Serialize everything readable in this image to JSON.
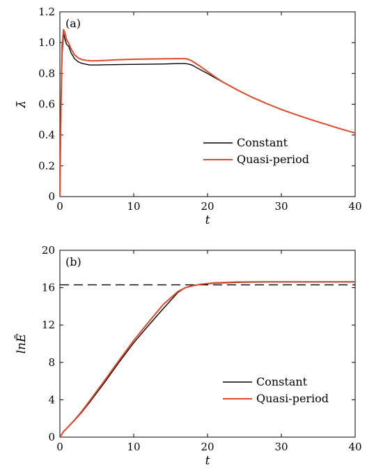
{
  "chart_data": [
    {
      "panel": "(a)",
      "type": "line",
      "xlabel": "t",
      "ylabel": "λ̄",
      "xlim": [
        0,
        40
      ],
      "ylim": [
        0,
        1.2
      ],
      "xticks": [
        "0",
        "10",
        "20",
        "30",
        "40"
      ],
      "yticks": [
        "0",
        "0.2",
        "0.4",
        "0.6",
        "0.8",
        "1.0",
        "1.2"
      ],
      "legend_position": "lower-right",
      "series": [
        {
          "name": "Constant",
          "color": "#000000",
          "x": [
            0,
            0.15,
            0.3,
            0.5,
            0.7,
            0.9,
            1.2,
            1.5,
            2,
            2.5,
            3,
            3.5,
            4,
            5,
            6,
            8,
            10,
            12,
            14,
            16,
            17,
            17.5,
            18,
            18.5,
            19,
            20,
            21,
            22,
            24,
            26,
            28,
            30,
            32,
            34,
            36,
            38,
            40
          ],
          "y": [
            0,
            0.55,
            0.92,
            1.06,
            1.02,
            0.99,
            0.975,
            0.935,
            0.895,
            0.875,
            0.865,
            0.86,
            0.855,
            0.855,
            0.856,
            0.858,
            0.859,
            0.86,
            0.861,
            0.864,
            0.864,
            0.86,
            0.852,
            0.838,
            0.825,
            0.8,
            0.772,
            0.745,
            0.693,
            0.646,
            0.604,
            0.566,
            0.532,
            0.5,
            0.47,
            0.44,
            0.413
          ]
        },
        {
          "name": "Quasi-period",
          "color": "#e0492a",
          "x": [
            0,
            0.15,
            0.3,
            0.5,
            0.7,
            0.9,
            1.2,
            1.5,
            2,
            2.5,
            3,
            3.5,
            4,
            5,
            6,
            8,
            10,
            12,
            14,
            16,
            17,
            17.5,
            18,
            18.5,
            19,
            20,
            21,
            22,
            24,
            26,
            28,
            30,
            32,
            34,
            36,
            38,
            40
          ],
          "y": [
            0,
            0.6,
            0.98,
            1.085,
            1.06,
            1.02,
            0.995,
            0.96,
            0.92,
            0.9,
            0.89,
            0.885,
            0.882,
            0.882,
            0.884,
            0.889,
            0.892,
            0.894,
            0.895,
            0.896,
            0.896,
            0.89,
            0.878,
            0.862,
            0.846,
            0.812,
            0.778,
            0.746,
            0.694,
            0.646,
            0.604,
            0.566,
            0.532,
            0.5,
            0.47,
            0.44,
            0.413
          ]
        }
      ]
    },
    {
      "panel": "(b)",
      "type": "line",
      "xlabel": "t",
      "ylabel": "lnĒ",
      "xlim": [
        0,
        40
      ],
      "ylim": [
        0,
        20
      ],
      "xticks": [
        "0",
        "10",
        "20",
        "30",
        "40"
      ],
      "yticks": [
        "0",
        "4",
        "8",
        "12",
        "16",
        "20"
      ],
      "legend_position": "lower-right",
      "reference_line": {
        "y": 16.3,
        "style": "dashed",
        "color": "#000000"
      },
      "series": [
        {
          "name": "Constant",
          "color": "#000000",
          "x": [
            0,
            0.5,
            1,
            2,
            3,
            4,
            6,
            8,
            10,
            12,
            14,
            16,
            17,
            18,
            19,
            20,
            21,
            22,
            24,
            26,
            28,
            30,
            35,
            40
          ],
          "y": [
            0,
            0.6,
            1.0,
            1.8,
            2.7,
            3.7,
            5.8,
            8.0,
            10.1,
            11.95,
            13.75,
            15.5,
            16.0,
            16.25,
            16.32,
            16.4,
            16.48,
            16.5,
            16.55,
            16.58,
            16.6,
            16.6,
            16.6,
            16.6
          ]
        },
        {
          "name": "Quasi-period",
          "color": "#e0492a",
          "x": [
            0,
            0.5,
            1,
            2,
            3,
            4,
            6,
            8,
            10,
            12,
            14,
            16,
            17,
            18,
            19,
            20,
            21,
            22,
            24,
            26,
            28,
            30,
            35,
            40
          ],
          "y": [
            0,
            0.6,
            1.0,
            1.85,
            2.8,
            3.85,
            6.0,
            8.2,
            10.35,
            12.3,
            14.2,
            15.6,
            16.0,
            16.2,
            16.35,
            16.45,
            16.52,
            16.55,
            16.6,
            16.62,
            16.63,
            16.63,
            16.63,
            16.63
          ]
        }
      ]
    }
  ]
}
